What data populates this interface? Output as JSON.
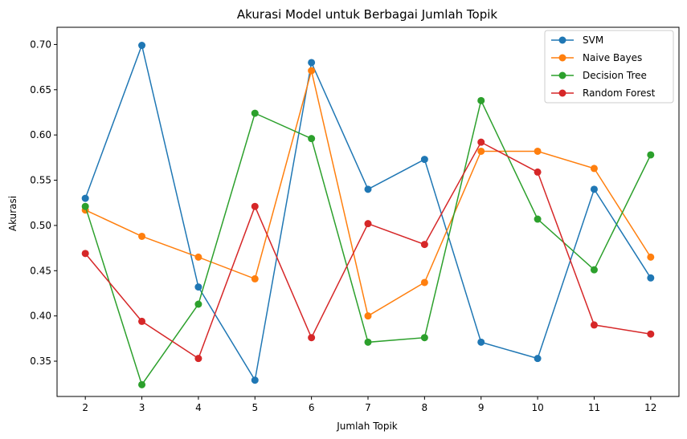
{
  "chart_data": {
    "type": "line",
    "title": "Akurasi Model untuk Berbagai Jumlah Topik",
    "xlabel": "Jumlah Topik",
    "ylabel": "Akurasi",
    "x": [
      2,
      3,
      4,
      5,
      6,
      7,
      8,
      9,
      10,
      11,
      12
    ],
    "xlim": [
      1.5,
      12.5
    ],
    "ylim": [
      0.311,
      0.719
    ],
    "yticks": [
      0.35,
      0.4,
      0.45,
      0.5,
      0.55,
      0.6,
      0.65,
      0.7
    ],
    "grid": false,
    "legend_position": "top-right",
    "series": [
      {
        "name": "SVM",
        "color": "#1f77b4",
        "values": [
          0.53,
          0.699,
          0.432,
          0.329,
          0.68,
          0.54,
          0.573,
          0.371,
          0.353,
          0.54,
          0.442
        ]
      },
      {
        "name": "Naive Bayes",
        "color": "#ff7f0e",
        "values": [
          0.517,
          0.488,
          0.465,
          0.441,
          0.671,
          0.4,
          0.437,
          0.582,
          0.582,
          0.563,
          0.465
        ]
      },
      {
        "name": "Decision Tree",
        "color": "#2ca02c",
        "values": [
          0.521,
          0.324,
          0.413,
          0.624,
          0.596,
          0.371,
          0.376,
          0.638,
          0.507,
          0.451,
          0.578
        ]
      },
      {
        "name": "Random Forest",
        "color": "#d62728",
        "values": [
          0.469,
          0.394,
          0.353,
          0.521,
          0.376,
          0.502,
          0.479,
          0.592,
          0.559,
          0.39,
          0.38
        ]
      }
    ]
  }
}
